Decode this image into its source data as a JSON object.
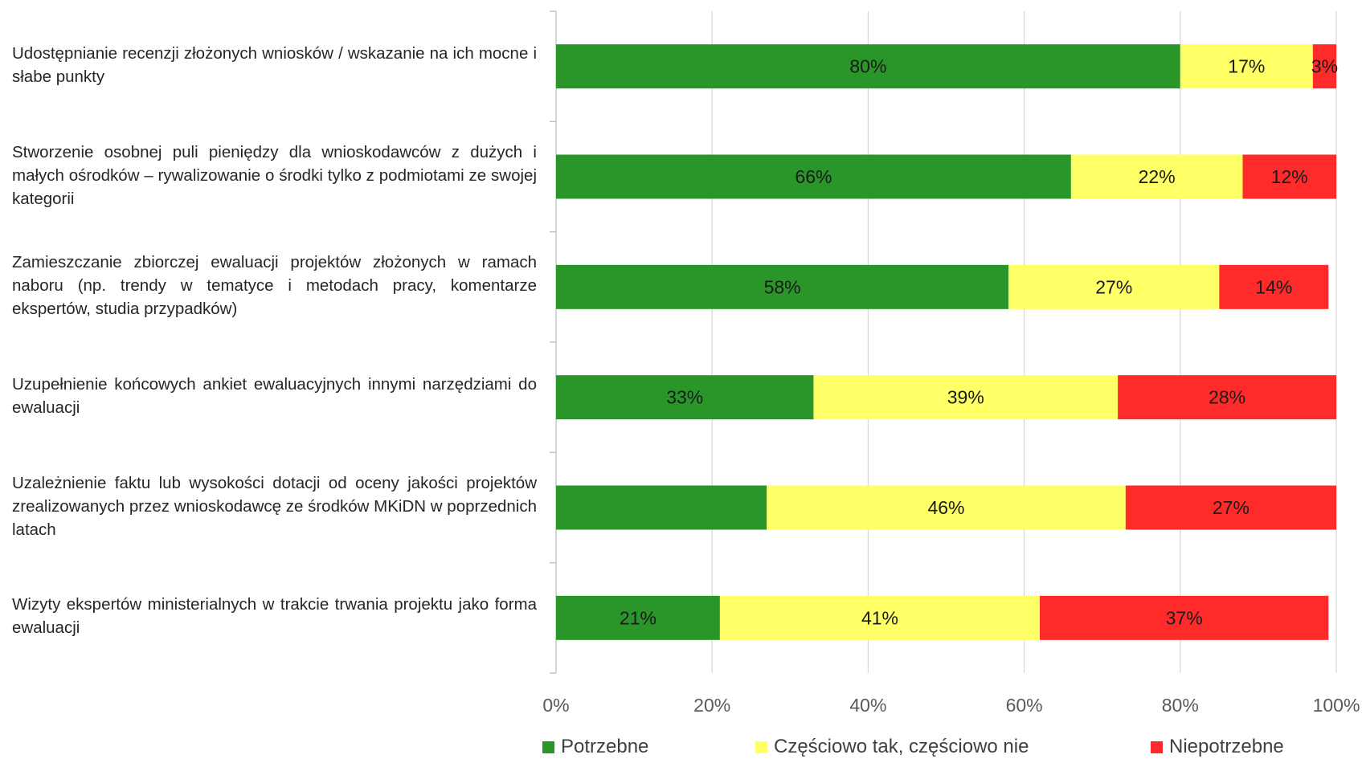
{
  "chart_data": {
    "type": "bar",
    "orientation": "horizontal",
    "stacked": "percent",
    "categories": [
      "Udostępnianie recenzji złożonych wniosków / wskazanie na ich mocne i słabe punkty",
      "Stworzenie osobnej puli pieniędzy dla wnioskodawców z dużych i małych ośrodków – rywalizowanie o środki tylko z podmiotami ze swojej kategorii",
      "Zamieszczanie zbiorczej ewaluacji projektów złożonych w ramach naboru (np. trendy w tematyce i metodach pracy, komentarze ekspertów, studia przypadków)",
      "Uzupełnienie końcowych ankiet ewaluacyjnych innymi narzędziami do ewaluacji",
      "Uzależnienie faktu lub wysokości dotacji od oceny jakości projektów zrealizowanych przez wnioskodawcę ze środków MKiDN w poprzednich latach",
      "Wizyty ekspertów ministerialnych w trakcie trwania projektu jako forma ewaluacji"
    ],
    "series": [
      {
        "name": "Potrzebne",
        "color": "#2a962a",
        "values": [
          80,
          66,
          58,
          33,
          27,
          21
        ],
        "labels": [
          "80%",
          "66%",
          "58%",
          "33%",
          "",
          "21%"
        ]
      },
      {
        "name": "Częściowo tak, częściowo nie",
        "color": "#ffff66",
        "values": [
          17,
          22,
          27,
          39,
          46,
          41
        ],
        "labels": [
          "17%",
          "22%",
          "27%",
          "39%",
          "46%",
          "41%"
        ]
      },
      {
        "name": "Niepotrzebne",
        "color": "#ff2a2a",
        "values": [
          3,
          12,
          14,
          28,
          27,
          37
        ],
        "labels": [
          "3%",
          "12%",
          "14%",
          "28%",
          "27%",
          "37%"
        ]
      }
    ],
    "xlim": [
      0,
      100
    ],
    "xticks": [
      "0%",
      "20%",
      "40%",
      "60%",
      "80%",
      "100%"
    ],
    "grid": true,
    "legend": "bottom"
  }
}
